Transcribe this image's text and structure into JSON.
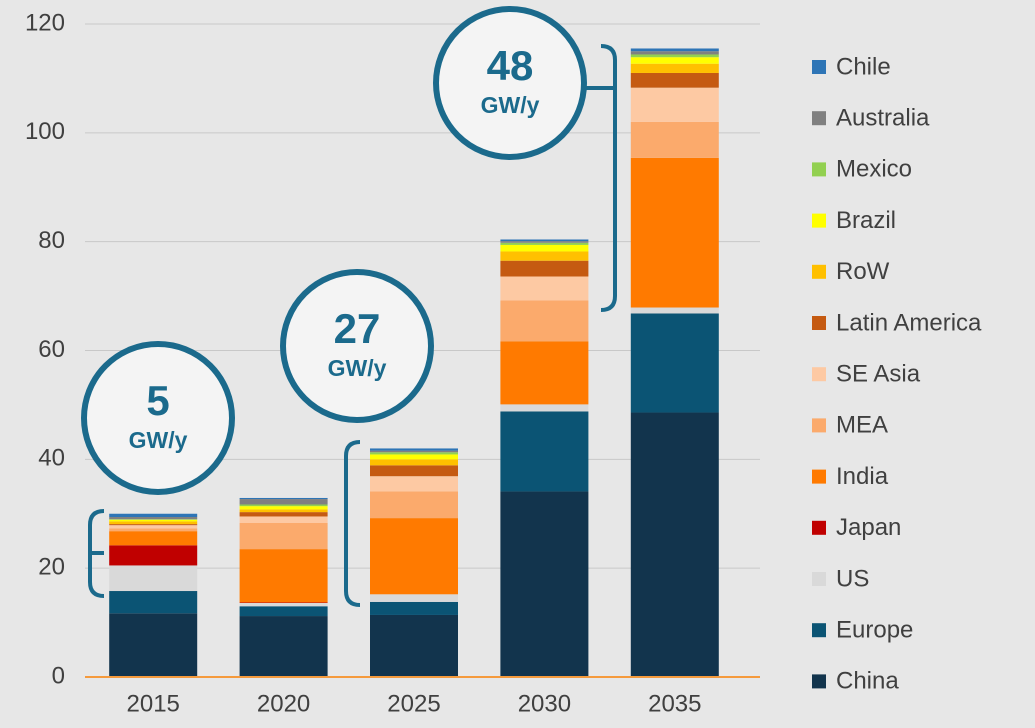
{
  "chart_data": {
    "type": "stacked_bar",
    "categories": [
      "2015",
      "2020",
      "2025",
      "2030",
      "2035"
    ],
    "series": [
      {
        "name": "China",
        "color": "#12344d",
        "values": [
          11.7,
          11.2,
          11.4,
          34.1,
          48.6
        ]
      },
      {
        "name": "Europe",
        "color": "#0b5474",
        "values": [
          4.1,
          1.8,
          2.4,
          14.7,
          18.2
        ]
      },
      {
        "name": "US",
        "color": "#d9d9d9",
        "values": [
          4.7,
          0.6,
          1.4,
          1.3,
          1.1
        ]
      },
      {
        "name": "Japan",
        "color": "#c00000",
        "values": [
          3.7,
          0.1,
          0,
          0,
          0
        ]
      },
      {
        "name": "India",
        "color": "#ff7a00",
        "values": [
          2.6,
          9.8,
          14,
          11.6,
          27.5
        ]
      },
      {
        "name": "MEA",
        "color": "#fbaa6c",
        "values": [
          0.5,
          4.8,
          4.9,
          7.5,
          6.6
        ]
      },
      {
        "name": "SE Asia",
        "color": "#fdc9a3",
        "values": [
          0.6,
          1.2,
          2.8,
          4.4,
          6.3
        ]
      },
      {
        "name": "Latin America",
        "color": "#c55a11",
        "values": [
          0.2,
          0.8,
          2.0,
          2.9,
          2.7
        ]
      },
      {
        "name": "RoW",
        "color": "#ffc000",
        "values": [
          0.5,
          0.5,
          1.1,
          1.7,
          1.7
        ]
      },
      {
        "name": "Brazil",
        "color": "#ffff00",
        "values": [
          0.3,
          0.6,
          0.9,
          1.2,
          1.2
        ]
      },
      {
        "name": "Mexico",
        "color": "#92d050",
        "values": [
          0.1,
          0.3,
          0.4,
          0.4,
          0.5
        ]
      },
      {
        "name": "Australia",
        "color": "#808080",
        "values": [
          0.4,
          1.0,
          0.3,
          0.3,
          0.6
        ]
      },
      {
        "name": "Chile",
        "color": "#2e75b6",
        "values": [
          0.6,
          0.2,
          0.4,
          0.3,
          0.5
        ]
      }
    ],
    "ylim": [
      0,
      120
    ],
    "yticks": [
      0,
      20,
      40,
      60,
      80,
      100,
      120
    ],
    "grid": true,
    "legend": "right",
    "annotations": [
      {
        "value": "5",
        "unit": "GW/y"
      },
      {
        "value": "27",
        "unit": "GW/y"
      },
      {
        "value": "48",
        "unit": "GW/y"
      }
    ]
  }
}
